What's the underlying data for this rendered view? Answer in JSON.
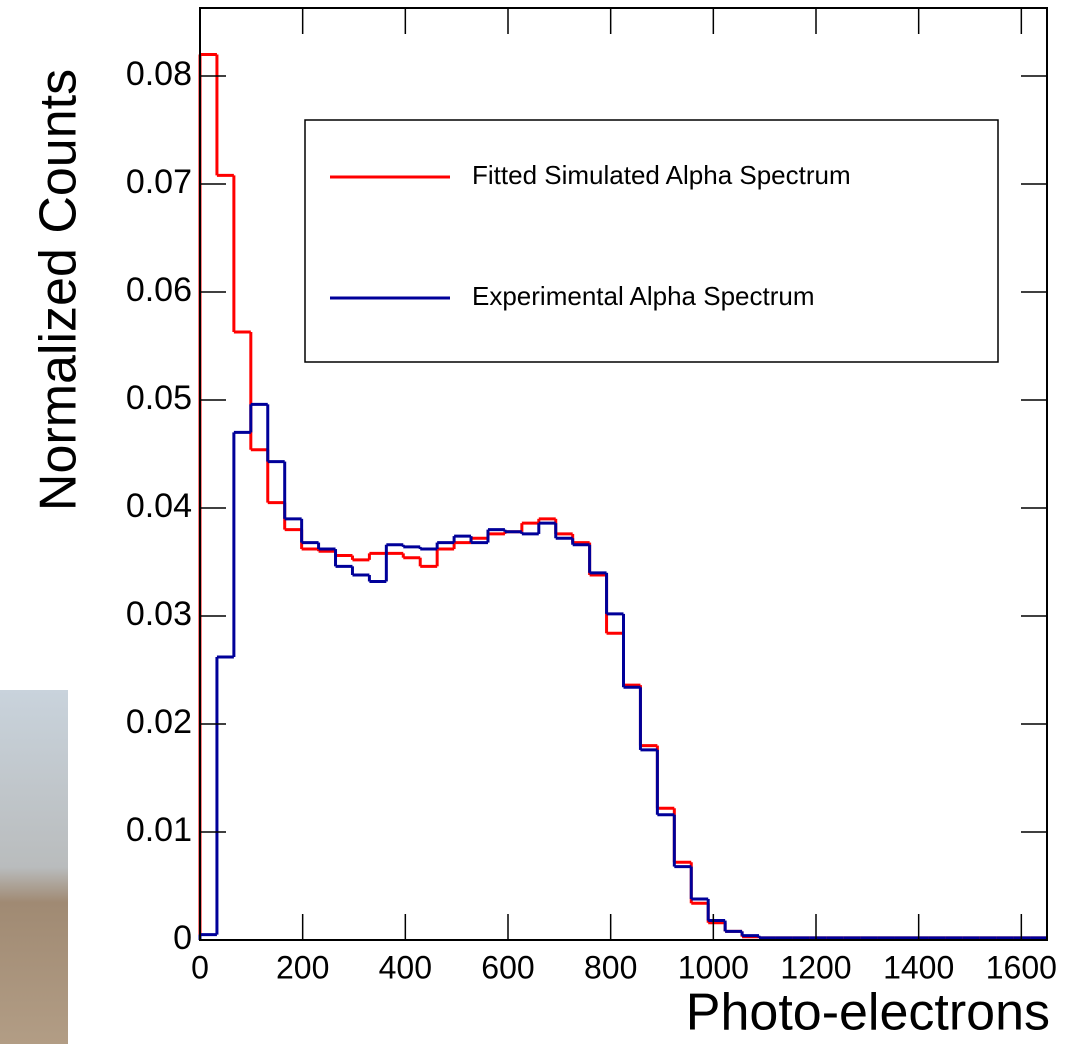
{
  "chart_data": {
    "type": "histogram",
    "xlabel": "Photo-electrons",
    "ylabel": "Normalized Counts",
    "bins": [
      0,
      33,
      66,
      99,
      132,
      165,
      198,
      231,
      264,
      297,
      330,
      363,
      396,
      429,
      462,
      495,
      528,
      561,
      594,
      627,
      660,
      693,
      726,
      759,
      792,
      825,
      858,
      891,
      924,
      957,
      990,
      1023,
      1056,
      1089,
      1122,
      1155,
      1188,
      1221,
      1254,
      1287,
      1320,
      1353,
      1386,
      1419,
      1452,
      1485,
      1518,
      1551,
      1584,
      1617,
      1650
    ],
    "series": [
      {
        "name": "Fitted Simulated Alpha Spectrum",
        "color": "#ff0000",
        "values": [
          0.082,
          0.0708,
          0.0563,
          0.0454,
          0.0405,
          0.038,
          0.0362,
          0.036,
          0.0356,
          0.0352,
          0.0358,
          0.0358,
          0.0354,
          0.0346,
          0.0362,
          0.0368,
          0.0372,
          0.0376,
          0.0378,
          0.0386,
          0.039,
          0.0376,
          0.0368,
          0.0338,
          0.0284,
          0.0236,
          0.018,
          0.0122,
          0.0072,
          0.0034,
          0.0016,
          0.0008,
          0.0003,
          0.0002,
          0.0002,
          0.0002,
          0.0002,
          0.0002,
          0.0002,
          0.0002,
          0.0002,
          0.0002,
          0.0002,
          0.0002,
          0.0002,
          0.0002,
          0.0002,
          0.0002,
          0.0002,
          0.0002
        ]
      },
      {
        "name": "Experimental Alpha Spectrum",
        "color": "#000099",
        "values": [
          0.0005,
          0.0262,
          0.047,
          0.0496,
          0.0443,
          0.039,
          0.0368,
          0.0362,
          0.0346,
          0.0338,
          0.0332,
          0.0366,
          0.0364,
          0.0362,
          0.0368,
          0.0374,
          0.0368,
          0.038,
          0.0378,
          0.0376,
          0.0386,
          0.0372,
          0.0366,
          0.034,
          0.0302,
          0.0234,
          0.0176,
          0.0116,
          0.0068,
          0.0038,
          0.0018,
          0.0008,
          0.0004,
          0.0002,
          0.0002,
          0.0002,
          0.0002,
          0.0002,
          0.0002,
          0.0002,
          0.0002,
          0.0002,
          0.0002,
          0.0002,
          0.0002,
          0.0002,
          0.0002,
          0.0002,
          0.0002,
          0.0002
        ]
      }
    ],
    "xlim": [
      0,
      1650
    ],
    "xticks": [
      0,
      200,
      400,
      600,
      800,
      1000,
      1200,
      1400,
      1600
    ],
    "ylim": [
      0,
      0.0863
    ],
    "yticks": [
      0,
      0.01,
      0.02,
      0.03,
      0.04,
      0.05,
      0.06,
      0.07,
      0.08
    ]
  }
}
